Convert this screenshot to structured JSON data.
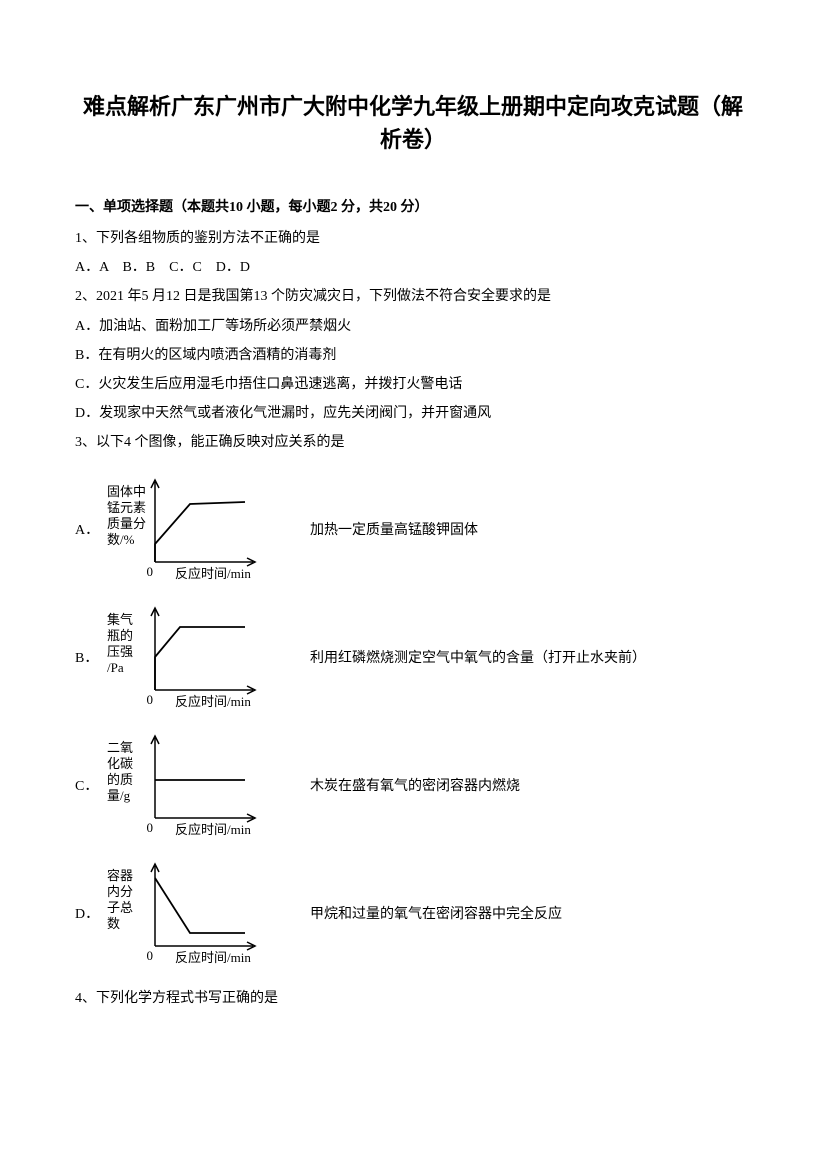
{
  "title": "难点解析广东广州市广大附中化学九年级上册期中定向攻克试题（解析卷）",
  "section1": "一、单项选择题（本题共10 小题，每小题2 分，共20 分）",
  "q1": {
    "stem": "1、下列各组物质的鉴别方法不正确的是",
    "opts": "A．A　B．B　C．C　D．D"
  },
  "q2": {
    "stem": "2、2021 年5 月12 日是我国第13 个防灾减灾日，下列做法不符合安全要求的是",
    "a": "A．加油站、面粉加工厂等场所必须严禁烟火",
    "b": "B．在有明火的区域内喷洒含酒精的消毒剂",
    "c": "C．火灾发生后应用湿毛巾捂住口鼻迅速逃离，并拨打火警电话",
    "d": "D．发现家中天然气或者液化气泄漏时，应先关闭阀门，并开窗通风"
  },
  "q3": {
    "stem": "3、以下4 个图像，能正确反映对应关系的是"
  },
  "chartA": {
    "label": "A．",
    "ylabel_l1": "固体中",
    "ylabel_l2": "锰元素",
    "ylabel_l3": "质量分",
    "ylabel_l4": "数/%",
    "xlabel": "反应时间/min",
    "caption": "加热一定质量高锰酸钾固体",
    "curve": [
      [
        20,
        88
      ],
      [
        20,
        70
      ],
      [
        55,
        30
      ],
      [
        110,
        28
      ]
    ],
    "stroke": "#000000"
  },
  "chartB": {
    "label": "B．",
    "ylabel_l1": "集气",
    "ylabel_l2": "瓶的",
    "ylabel_l3": "压强",
    "ylabel_l4": "/Pa",
    "xlabel": "反应时间/min",
    "caption": "利用红磷燃烧测定空气中氧气的含量（打开止水夹前）",
    "curve": [
      [
        20,
        88
      ],
      [
        20,
        55
      ],
      [
        45,
        25
      ],
      [
        110,
        25
      ]
    ],
    "stroke": "#000000"
  },
  "chartC": {
    "label": "C．",
    "ylabel_l1": "二氧",
    "ylabel_l2": "化碳",
    "ylabel_l3": "的质",
    "ylabel_l4": "量/g",
    "xlabel": "反应时间/min",
    "caption": "木炭在盛有氧气的密闭容器内燃烧",
    "curve": [
      [
        20,
        50
      ],
      [
        110,
        50
      ]
    ],
    "stroke": "#000000"
  },
  "chartD": {
    "label": "D．",
    "ylabel_l1": "容器",
    "ylabel_l2": "内分",
    "ylabel_l3": "子总",
    "ylabel_l4": "数",
    "xlabel": "反应时间/min",
    "caption": "甲烷和过量的氧气在密闭容器中完全反应",
    "curve": [
      [
        20,
        20
      ],
      [
        55,
        75
      ],
      [
        110,
        75
      ]
    ],
    "stroke": "#000000"
  },
  "q4": {
    "stem": "4、下列化学方程式书写正确的是"
  },
  "svg": {
    "width": 155,
    "height": 110,
    "axis_color": "#000000",
    "origin_label": "0",
    "label_fontsize": 13
  }
}
